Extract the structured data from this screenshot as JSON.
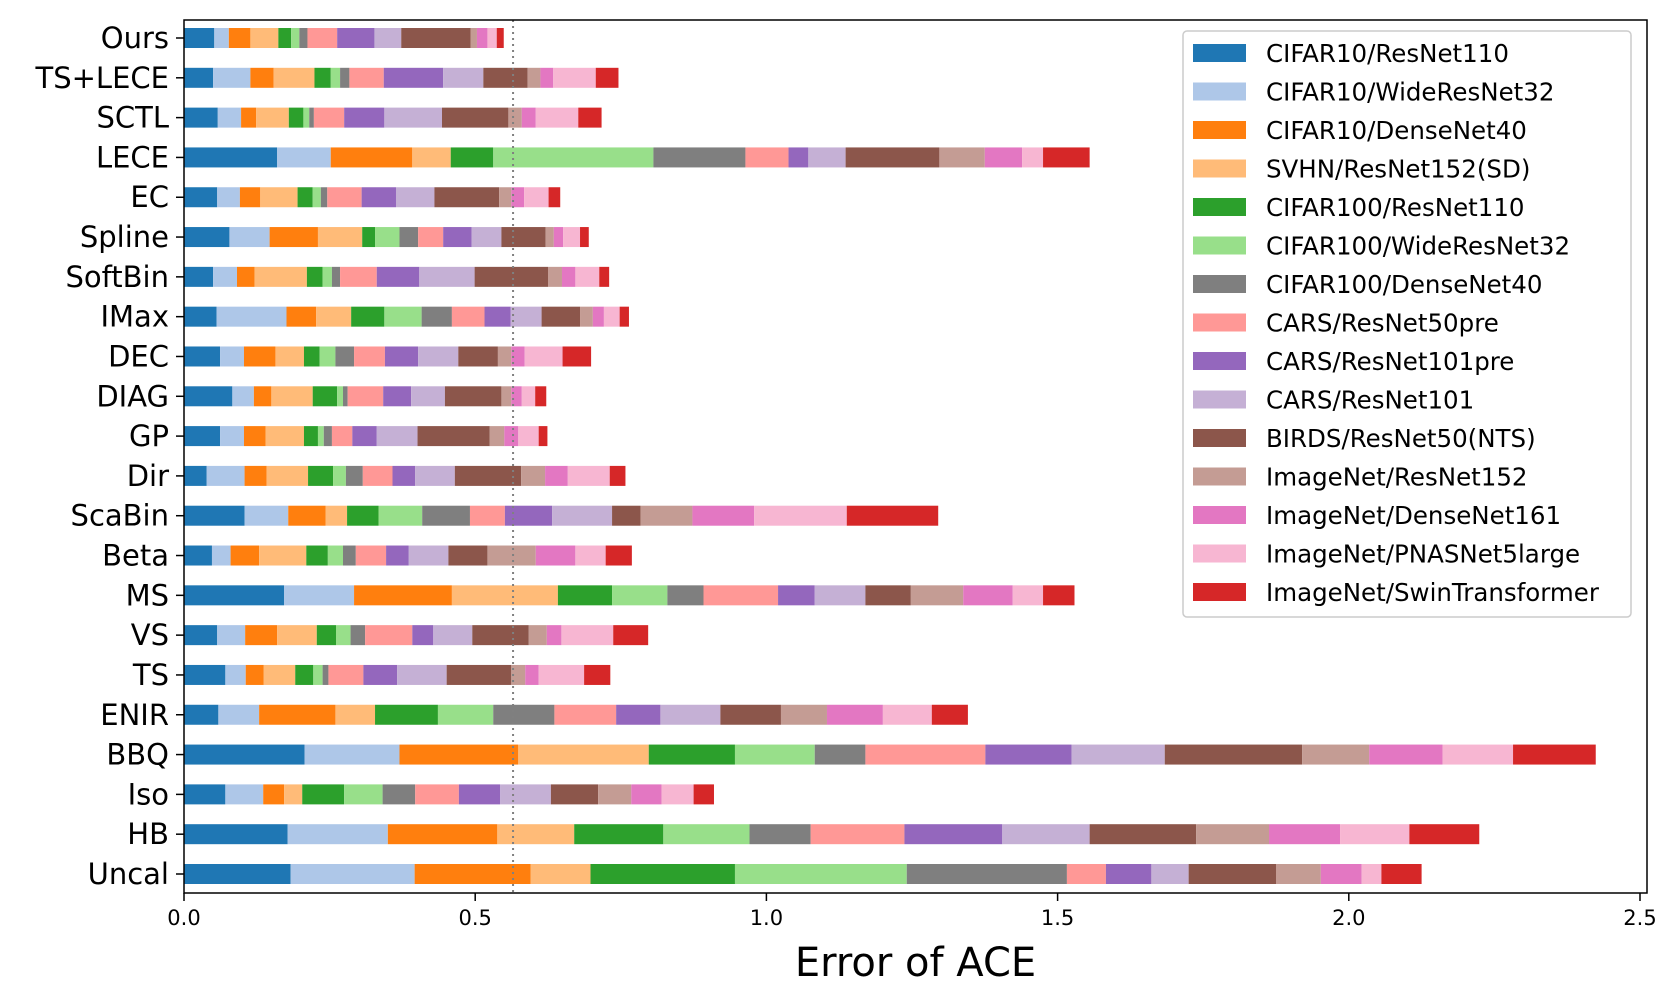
{
  "chart_data": {
    "type": "bar",
    "orientation": "horizontal",
    "stacked": true,
    "title": "",
    "xlabel": "Error of ACE",
    "ylabel": "",
    "xlim": [
      0,
      2.5
    ],
    "xticks": [
      "0.0",
      "0.5",
      "1.0",
      "1.5",
      "2.0",
      "2.5"
    ],
    "reference_line": 0.565,
    "legend_position": "upper right",
    "categories": [
      "Ours",
      "TS+LECE",
      "SCTL",
      "LECE",
      "EC",
      "Spline",
      "SoftBin",
      "IMax",
      "DEC",
      "DIAG",
      "GP",
      "Dir",
      "ScaBin",
      "Beta",
      "MS",
      "VS",
      "TS",
      "ENIR",
      "BBQ",
      "Iso",
      "HB",
      "Uncal"
    ],
    "series": [
      {
        "name": "CIFAR10/ResNet110",
        "color": "#1f77b4",
        "values": [
          0.052,
          0.05,
          0.058,
          0.16,
          0.057,
          0.078,
          0.05,
          0.056,
          0.062,
          0.083,
          0.062,
          0.039,
          0.104,
          0.048,
          0.172,
          0.057,
          0.071,
          0.059,
          0.207,
          0.071,
          0.178,
          0.183
        ]
      },
      {
        "name": "CIFAR10/WideResNet32",
        "color": "#aec7e8",
        "values": [
          0.025,
          0.064,
          0.04,
          0.092,
          0.039,
          0.069,
          0.041,
          0.12,
          0.041,
          0.037,
          0.041,
          0.065,
          0.075,
          0.032,
          0.12,
          0.048,
          0.035,
          0.07,
          0.163,
          0.065,
          0.172,
          0.213
        ]
      },
      {
        "name": "CIFAR10/DenseNet40",
        "color": "#ff7f0e",
        "values": [
          0.037,
          0.04,
          0.026,
          0.14,
          0.035,
          0.083,
          0.03,
          0.051,
          0.054,
          0.03,
          0.037,
          0.038,
          0.064,
          0.049,
          0.168,
          0.055,
          0.031,
          0.131,
          0.204,
          0.036,
          0.188,
          0.199
        ]
      },
      {
        "name": "SVHN/ResNet152(SD)",
        "color": "#ffbb78",
        "values": [
          0.048,
          0.07,
          0.056,
          0.066,
          0.064,
          0.076,
          0.09,
          0.06,
          0.049,
          0.071,
          0.066,
          0.071,
          0.037,
          0.081,
          0.182,
          0.068,
          0.054,
          0.068,
          0.224,
          0.031,
          0.132,
          0.103
        ]
      },
      {
        "name": "CIFAR100/ResNet110",
        "color": "#2ca02c",
        "values": [
          0.022,
          0.028,
          0.025,
          0.073,
          0.026,
          0.022,
          0.027,
          0.057,
          0.027,
          0.042,
          0.024,
          0.043,
          0.054,
          0.037,
          0.093,
          0.033,
          0.031,
          0.108,
          0.148,
          0.072,
          0.153,
          0.248
        ]
      },
      {
        "name": "CIFAR100/WideResNet32",
        "color": "#98df8a",
        "values": [
          0.014,
          0.016,
          0.01,
          0.275,
          0.014,
          0.042,
          0.016,
          0.064,
          0.027,
          0.01,
          0.01,
          0.022,
          0.075,
          0.026,
          0.095,
          0.025,
          0.016,
          0.095,
          0.137,
          0.066,
          0.148,
          0.295
        ]
      },
      {
        "name": "CIFAR100/DenseNet40",
        "color": "#7f7f7f",
        "values": [
          0.014,
          0.016,
          0.008,
          0.158,
          0.011,
          0.032,
          0.014,
          0.052,
          0.032,
          0.008,
          0.014,
          0.029,
          0.082,
          0.022,
          0.062,
          0.025,
          0.01,
          0.105,
          0.087,
          0.056,
          0.105,
          0.275
        ]
      },
      {
        "name": "CARS/ResNet50pre",
        "color": "#ff9896",
        "values": [
          0.051,
          0.059,
          0.052,
          0.074,
          0.059,
          0.043,
          0.063,
          0.056,
          0.053,
          0.061,
          0.035,
          0.051,
          0.06,
          0.052,
          0.128,
          0.081,
          0.06,
          0.106,
          0.206,
          0.075,
          0.161,
          0.067
        ]
      },
      {
        "name": "CARS/ResNet101pre",
        "color": "#9467bd",
        "values": [
          0.064,
          0.102,
          0.069,
          0.034,
          0.059,
          0.049,
          0.073,
          0.045,
          0.057,
          0.048,
          0.042,
          0.039,
          0.081,
          0.039,
          0.063,
          0.036,
          0.058,
          0.076,
          0.148,
          0.071,
          0.168,
          0.078
        ]
      },
      {
        "name": "CARS/ResNet101",
        "color": "#c5b0d5",
        "values": [
          0.046,
          0.069,
          0.099,
          0.064,
          0.066,
          0.051,
          0.095,
          0.053,
          0.069,
          0.058,
          0.07,
          0.068,
          0.103,
          0.068,
          0.087,
          0.067,
          0.085,
          0.103,
          0.16,
          0.087,
          0.15,
          0.064
        ]
      },
      {
        "name": "BIRDS/ResNet50(NTS)",
        "color": "#8c564b",
        "values": [
          0.119,
          0.076,
          0.114,
          0.161,
          0.111,
          0.076,
          0.126,
          0.066,
          0.068,
          0.097,
          0.124,
          0.114,
          0.049,
          0.067,
          0.078,
          0.097,
          0.111,
          0.104,
          0.236,
          0.081,
          0.183,
          0.15
        ]
      },
      {
        "name": "ImageNet/ResNet152",
        "color": "#c49c94",
        "values": [
          0.011,
          0.022,
          0.023,
          0.078,
          0.021,
          0.014,
          0.024,
          0.022,
          0.023,
          0.017,
          0.025,
          0.041,
          0.089,
          0.083,
          0.09,
          0.031,
          0.024,
          0.079,
          0.115,
          0.057,
          0.125,
          0.077
        ]
      },
      {
        "name": "ImageNet/DenseNet161",
        "color": "#e377c2",
        "values": [
          0.018,
          0.022,
          0.024,
          0.064,
          0.022,
          0.016,
          0.023,
          0.019,
          0.023,
          0.018,
          0.024,
          0.039,
          0.106,
          0.068,
          0.085,
          0.025,
          0.023,
          0.096,
          0.126,
          0.052,
          0.122,
          0.07
        ]
      },
      {
        "name": "ImageNet/PNASNet5large",
        "color": "#f7b6d2",
        "values": [
          0.016,
          0.073,
          0.073,
          0.036,
          0.042,
          0.029,
          0.041,
          0.027,
          0.065,
          0.023,
          0.035,
          0.072,
          0.159,
          0.052,
          0.052,
          0.089,
          0.078,
          0.084,
          0.121,
          0.055,
          0.119,
          0.034
        ]
      },
      {
        "name": "ImageNet/SwinTransformer",
        "color": "#d62728",
        "values": [
          0.012,
          0.039,
          0.04,
          0.08,
          0.02,
          0.015,
          0.017,
          0.016,
          0.049,
          0.019,
          0.015,
          0.027,
          0.157,
          0.045,
          0.054,
          0.06,
          0.045,
          0.062,
          0.142,
          0.035,
          0.12,
          0.069
        ]
      }
    ]
  }
}
